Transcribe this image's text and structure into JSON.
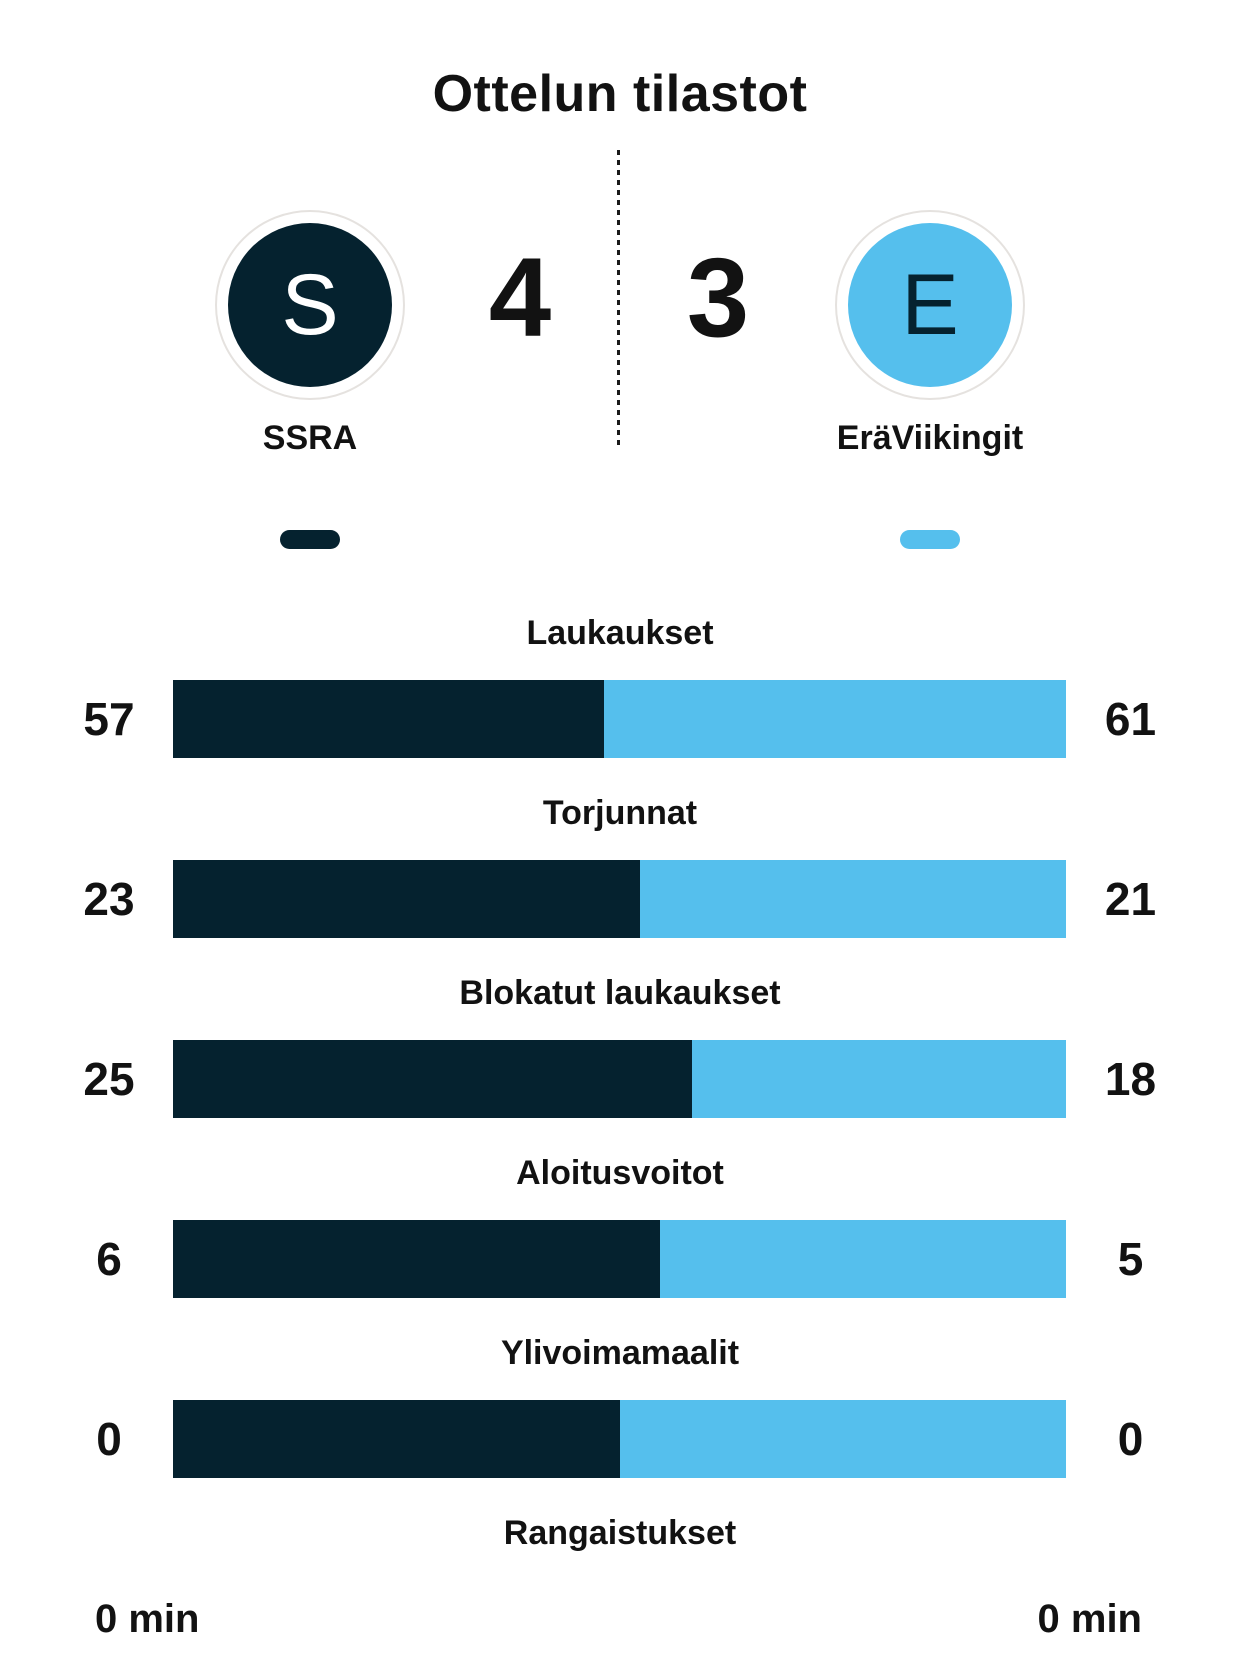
{
  "title": "Ottelun tilastot",
  "colors": {
    "home": "#05222f",
    "away": "#55bfed",
    "text": "#121212",
    "circle_ring": "#e5e2df",
    "background": "#ffffff"
  },
  "header": {
    "home": {
      "initial": "S",
      "name": "SSRA",
      "score": "4"
    },
    "away": {
      "initial": "E",
      "name": "EräViikingit",
      "score": "3"
    }
  },
  "chart_data": {
    "type": "bar",
    "orientation": "horizontal-paired",
    "title": "Ottelun tilastot",
    "legend": [
      "SSRA",
      "EräViikingit"
    ],
    "legend_position": "top",
    "categories": [
      "Laukaukset",
      "Torjunnat",
      "Blokatut laukaukset",
      "Aloitusvoitot",
      "Ylivoimamaalit",
      "Rangaistukset"
    ],
    "series": [
      {
        "name": "SSRA",
        "values": [
          57,
          23,
          25,
          6,
          0,
          0
        ]
      },
      {
        "name": "EräViikingit",
        "values": [
          61,
          21,
          18,
          5,
          0,
          0
        ]
      }
    ],
    "value_labels": {
      "home": [
        "57",
        "23",
        "25",
        "6",
        "0",
        "0 min"
      ],
      "away": [
        "61",
        "21",
        "18",
        "5",
        "0",
        "0 min"
      ]
    },
    "notes": "Each row is a single bar split proportionally between teams; Ylivoimamaalit 0-0 drawn as 50/50; Rangaistukset row shows labels only, no bar."
  },
  "stats": [
    {
      "label": "Laukaukset",
      "home": 57,
      "away": 61,
      "home_label": "57",
      "away_label": "61",
      "show_bar": true
    },
    {
      "label": "Torjunnat",
      "home": 23,
      "away": 21,
      "home_label": "23",
      "away_label": "21",
      "show_bar": true
    },
    {
      "label": "Blokatut laukaukset",
      "home": 25,
      "away": 18,
      "home_label": "25",
      "away_label": "18",
      "show_bar": true
    },
    {
      "label": "Aloitusvoitot",
      "home": 6,
      "away": 5,
      "home_label": "6",
      "away_label": "5",
      "show_bar": true
    },
    {
      "label": "Ylivoimamaalit",
      "home": 0,
      "away": 0,
      "home_label": "0",
      "away_label": "0",
      "show_bar": true
    },
    {
      "label": "Rangaistukset",
      "home": 0,
      "away": 0,
      "home_label": "0 min",
      "away_label": "0 min",
      "show_bar": false
    }
  ]
}
